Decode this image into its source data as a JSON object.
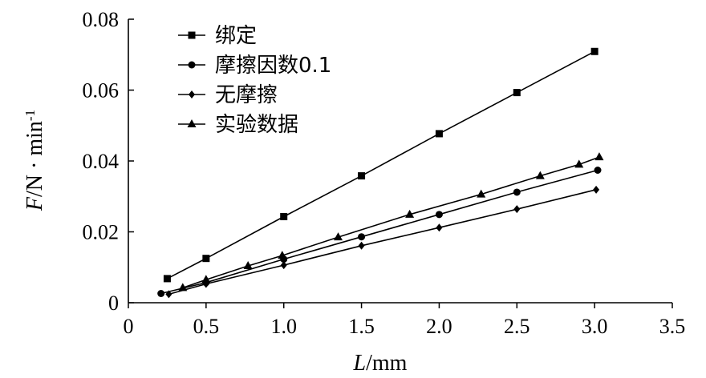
{
  "chart_data": {
    "type": "line",
    "xlabel_var": "L",
    "xlabel_unit": "/mm",
    "ylabel_var": "F",
    "ylabel_unit": "/N · min",
    "ylabel_sup": "-1",
    "xlim": [
      0,
      3.5
    ],
    "ylim": [
      0,
      0.08
    ],
    "x_ticks": [
      {
        "value": 0,
        "label": "0"
      },
      {
        "value": 0.5,
        "label": "0.5"
      },
      {
        "value": 1.0,
        "label": "1.0"
      },
      {
        "value": 1.5,
        "label": "1.5"
      },
      {
        "value": 2.0,
        "label": "2.0"
      },
      {
        "value": 2.5,
        "label": "2.5"
      },
      {
        "value": 3.0,
        "label": "3.0"
      },
      {
        "value": 3.5,
        "label": "3.5"
      }
    ],
    "y_ticks": [
      {
        "value": 0,
        "label": "0"
      },
      {
        "value": 0.02,
        "label": "0.02"
      },
      {
        "value": 0.04,
        "label": "0.04"
      },
      {
        "value": 0.06,
        "label": "0.06"
      },
      {
        "value": 0.08,
        "label": "0.08"
      }
    ],
    "grid": false,
    "legend_position": "top-left",
    "series": [
      {
        "name": "绑定",
        "marker": "square",
        "color": "#000000",
        "points": [
          [
            0.25,
            0.0068
          ],
          [
            0.5,
            0.0125
          ],
          [
            1.0,
            0.0243
          ],
          [
            1.5,
            0.0358
          ],
          [
            2.0,
            0.0477
          ],
          [
            2.5,
            0.0593
          ],
          [
            3.0,
            0.0709
          ]
        ]
      },
      {
        "name": "摩擦因数0.1",
        "marker": "circle",
        "color": "#000000",
        "points": [
          [
            0.21,
            0.0026
          ],
          [
            0.5,
            0.0057
          ],
          [
            1.0,
            0.0123
          ],
          [
            1.5,
            0.0186
          ],
          [
            2.0,
            0.0249
          ],
          [
            2.5,
            0.0312
          ],
          [
            3.02,
            0.0374
          ]
        ]
      },
      {
        "name": "无摩擦",
        "marker": "diamond",
        "color": "#000000",
        "points": [
          [
            0.26,
            0.0024
          ],
          [
            0.5,
            0.0053
          ],
          [
            1.0,
            0.0106
          ],
          [
            1.5,
            0.0161
          ],
          [
            2.0,
            0.0212
          ],
          [
            2.5,
            0.0264
          ],
          [
            3.01,
            0.0319
          ]
        ]
      },
      {
        "name": "实验数据",
        "marker": "triangle",
        "color": "#000000",
        "points": [
          [
            0.35,
            0.0042
          ],
          [
            0.5,
            0.0065
          ],
          [
            0.77,
            0.0104
          ],
          [
            0.99,
            0.0133
          ],
          [
            1.35,
            0.0185
          ],
          [
            1.81,
            0.0249
          ],
          [
            2.27,
            0.0306
          ],
          [
            2.65,
            0.0358
          ],
          [
            2.9,
            0.039
          ],
          [
            3.03,
            0.0411
          ]
        ]
      }
    ]
  }
}
